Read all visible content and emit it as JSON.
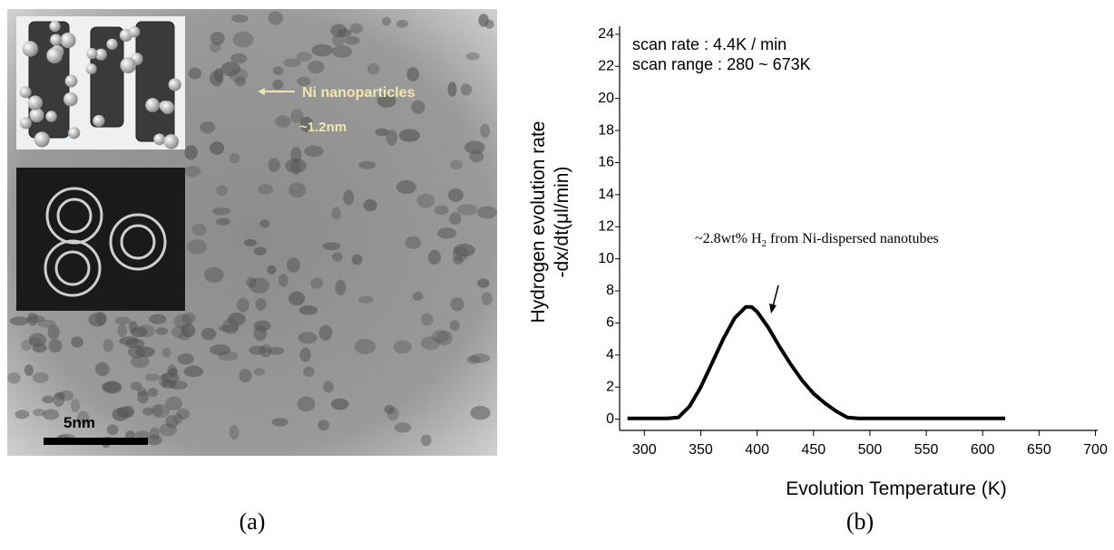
{
  "panel_a": {
    "label": "(a)",
    "arrow_text": "Ni nanoparticles",
    "size_text": "~1.2nm",
    "scale_text": "5nm"
  },
  "chart_data": {
    "type": "line",
    "panel_label": "(b)",
    "ylabel": [
      "Hydrogen evolution rate",
      "-dx/dt(μl/min)"
    ],
    "xlabel": "Evolution Temperature (K)",
    "annotations": [
      "scan rate : 4.4K / min",
      "scan range : 280 ~ 673K"
    ],
    "peak_note": [
      "~2.8wt% H",
      "2",
      " from Ni-dispersed nanotubes"
    ],
    "x": [
      285,
      300,
      320,
      330,
      340,
      350,
      360,
      370,
      380,
      390,
      395,
      400,
      410,
      420,
      430,
      440,
      450,
      460,
      470,
      480,
      490,
      500,
      550,
      620
    ],
    "series": [
      {
        "color": "#000000",
        "values": [
          0.05,
          0.05,
          0.05,
          0.1,
          0.8,
          2.0,
          3.5,
          5.0,
          6.3,
          7.0,
          7.0,
          6.7,
          5.7,
          4.5,
          3.4,
          2.4,
          1.6,
          1.0,
          0.5,
          0.1,
          0.05,
          0.05,
          0.05,
          0.05
        ]
      }
    ],
    "xlim": [
      278,
      702
    ],
    "ylim": [
      -0.7,
      24.5
    ],
    "xticks": [
      300,
      350,
      400,
      450,
      500,
      550,
      600,
      650,
      700
    ],
    "yticks": [
      0,
      2,
      4,
      6,
      8,
      10,
      12,
      14,
      16,
      18,
      20,
      22,
      24
    ]
  }
}
